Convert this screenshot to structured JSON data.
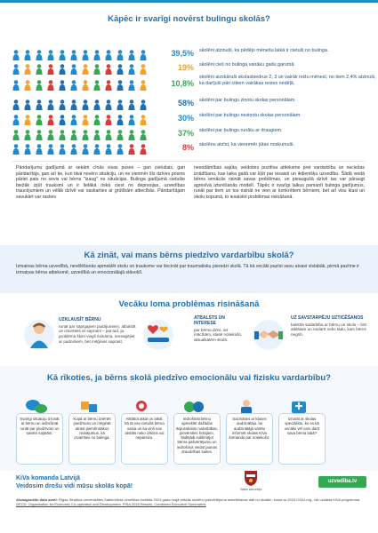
{
  "header": {
    "title": "Kāpēc ir svarīgi novērst bulingu skolās?"
  },
  "stats": [
    {
      "pct": "39,5%",
      "color": "#1f8ad0",
      "people": "sky",
      "desc": "skolēni atzinuši, ka pēdējo mēnešu laikā ir cietuši no bulinga."
    },
    {
      "pct": "19%",
      "color": "#f0a32d",
      "people": "multi",
      "desc": "skolēni cieš no bulinga vairāku gadu garumā."
    },
    {
      "pct": "10,8%",
      "color": "#34a853",
      "people": "multi",
      "desc": "skolēni aizskāruši skolasbiedrus 2, 3 un vairāk reižu mēnesī, no tiem 2,4% atzinuši, ka darījuši pāri citiem vairākas reizes nedēļā."
    },
    {
      "pct": "58%",
      "color": "#1f6fb5",
      "people": "blue",
      "desc": "skolēni par bulingu ziņotu skolas personālam."
    },
    {
      "pct": "30%",
      "color": "#1f8ad0",
      "people": "multi",
      "desc": "skolēni par bulingu neziņotu skolas personālam."
    },
    {
      "pct": "37%",
      "color": "#34a853",
      "people": "green",
      "desc": "skolēni par bulingu runātu ar draugiem."
    },
    {
      "pct": "8%",
      "color": "#d93a3a",
      "people": "red",
      "desc": "skolēnu atzīst, ka viennmēr jūtas noskumuši."
    }
  ],
  "intro": {
    "col1": "Pāridarījumu gadījumā ar sekām cīnās visas puses – gan cietušais, gan pāridarītājs, gan arī tie, kuri tikai novēro situāciju, un ne vienmēr šīs dzīves posms pāriet pats no sevis vai bērns \"izaug\" no situācijas. Bulinga gadījumā cietušie biežāk izjūt trauksmi un ir lielākā riskā ciest no depresijas, uzvedības traucējumiem un vēlāk dzīvē var saskarties ar grūtībām attiecībās. Pāridarītājam savukārt var rasties",
    "col2": "nesodāmības sajūta, veidoties pozitīva attieksme pret vardarbību un neciešas izrādīšanu, kas laika gaitā var kļūt par iesaisti un ikdienišķu uzvedību. Šādā veidā bērns iemācās risināt savas problēmas, un pieaugušā dzīvē tas var pāraugt agresīvā izturēšanās modelī. Tāpēc ir svarīgi laikus pamanīt bulinga gadījumus, runāt par tiem un tos risināt ne vien ar konkrētiem bērniem, bet arī visu klasi un skolu kopumā, to iesaistot problēmas risināšanā."
  },
  "section2": {
    "title": "Kā zināt, vai mans bērns piedzīvo vardarbību skolā?",
    "text": "Izmainas bērna uzvedībā, nevēlēšanās apmeklēt skolu un trauksme var liecināt par traumatisku pieredzi skolā. Tā kā vecāki pazīst savu atvasi vislabāk, pirmā pazīme ir izmaiņas bērna attieksmē, uzvedībā un emocionālajā stāvoklī."
  },
  "section3": {
    "title": "Vecāku loma problēmas risināšanā",
    "roles": [
      {
        "title": "UZKLAUSĪT BĒRNU",
        "text": "runāt par sāpīgajiem jautājumiem, atbalstīt un izturēties ar sapratni – pat tad, ja problēma šķiet viegli risināma, nereaģējiet ar padomiem, bet mēģiniet saprast."
      },
      {
        "title": "ATBALSTS UN INTERESE",
        "text": "par bērna dzīvi, arī mācībām, klasē notiekošo, aktualitātēm skolā."
      },
      {
        "title": "UZ SAVSTARPĒJU UZTICĒŠANOS",
        "text": "balstīta sadarbība ar bērnu un skolu – būt atklātam un nedarīt neko tādu, kam bērns negrib."
      }
    ]
  },
  "section4": {
    "title": "Kā rīkoties, ja bērns skolā piedzīvo emocionālu vai fizisku vardarbību?",
    "cards": [
      "Svarīgi situāciju izrunāt ar bērnu un iedrošināt runāt par piedzīvoto un savām sajūtām.",
      "Kopā ar bērnu izvērtēt piedzīvoto un mēģināt atrast piemērotākos risinājumus, kā izvairīties no bulinga.",
      "Atklātot atkal un atkal, kā tā nav cietušā bērna vaina un ka viņš nav atstāts neko izlīdzis vai nepareizu.",
      "Iedrošināt bērnu apmeklēt dažādas ārpusskolas nodarbības, pievērsties hobijiem, šādējādi sublimējot bērna pašvērtējumu un iedrošinot veidot jaunas draudzības saites.",
      "Sazināties ar klases audzinātāju, lai audzinātāja varētu informēt skolas KiVa komandu par notiekošo.",
      "Izrunāt ar skolas speciālistu, ko es kā vecāks vēl varu darīt sava bērna labā?"
    ]
  },
  "footer": {
    "team_line1": "KiVa komanda Latvijā",
    "team_line2": "Veidosim drošu vidi mūsu skolās kopā!",
    "logo_caption": "Valsts kanceleja",
    "website": "uzvedība.lv",
    "source_label": "Atsaugoušīto datu avoti:",
    "source_text": "Rīgas Stradiņa universitātes Sabiedrības veselības institūta 2023 gada majā veiktās skolēnu pašvērtējuma anketēšanas dati no skolām, kuras ar 2023./2024.mg., īsti uzsākta KiVa programma.",
    "source_text2": "OECD: Organisation for Economic Co-operation and Development. PISA 2018 Results. Combined Executive Summaries"
  },
  "colors": {
    "brand_blue": "#1f6fb5",
    "accent_blue": "#1f8ad0",
    "green": "#34a853",
    "orange": "#f0a32d",
    "red": "#d93a3a",
    "band_bg": "#eaf3fb"
  }
}
